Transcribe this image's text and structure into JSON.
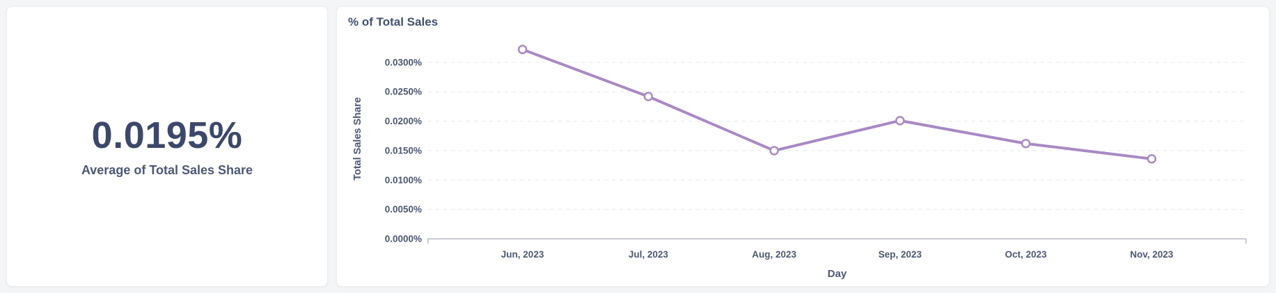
{
  "theme": {
    "page_background": "#f4f5f7",
    "card_background": "#ffffff",
    "text_dark": "#3c4869",
    "text_label": "#4c5773",
    "grid_color": "#e6e7ea",
    "axis_color": "#949aab"
  },
  "scalar_card": {
    "value": "0.0195%",
    "label": "Average of Total Sales Share"
  },
  "chart_card": {
    "title": "% of Total Sales"
  },
  "chart_data": {
    "type": "line",
    "title": "% of Total Sales",
    "xlabel": "Day",
    "ylabel": "Total Sales Share",
    "categories": [
      "Jun, 2023",
      "Jul, 2023",
      "Aug, 2023",
      "Sep, 2023",
      "Oct, 2023",
      "Nov, 2023"
    ],
    "values": [
      0.0322,
      0.0242,
      0.015,
      0.0201,
      0.0162,
      0.0136
    ],
    "unit": "%",
    "ylim": [
      0,
      0.034
    ],
    "yticks": [
      0.0,
      0.005,
      0.01,
      0.015,
      0.02,
      0.025,
      0.03
    ],
    "ytick_labels": [
      "0.0000%",
      "0.0050%",
      "0.0100%",
      "0.0150%",
      "0.0200%",
      "0.0250%",
      "0.0300%"
    ],
    "line_color": "#a989c5",
    "marker_fill": "#ffffff",
    "grid": true,
    "legend": false
  }
}
